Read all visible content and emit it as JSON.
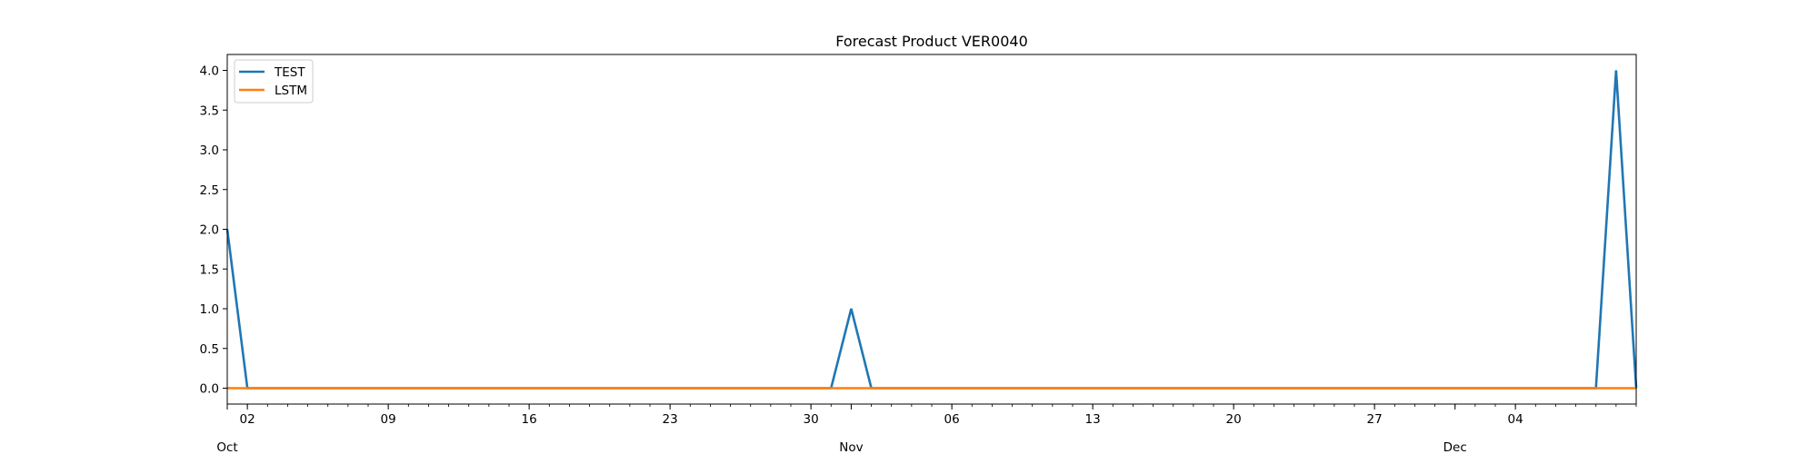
{
  "chart_data": {
    "type": "line",
    "title": "Forecast Product VER0040",
    "xlabel": "",
    "ylabel": "",
    "x_range": [
      "2022-10-01",
      "2022-12-10"
    ],
    "ylim": [
      -0.2,
      4.2
    ],
    "grid": false,
    "legend_position": "top-left",
    "y_ticks": [
      "0.0",
      "0.5",
      "1.0",
      "1.5",
      "2.0",
      "2.5",
      "3.0",
      "3.5",
      "4.0"
    ],
    "x_major_ticks": [
      {
        "date": "2022-10-02",
        "label": "02"
      },
      {
        "date": "2022-10-09",
        "label": "09"
      },
      {
        "date": "2022-10-16",
        "label": "16"
      },
      {
        "date": "2022-10-23",
        "label": "23"
      },
      {
        "date": "2022-10-30",
        "label": "30"
      },
      {
        "date": "2022-11-06",
        "label": "06"
      },
      {
        "date": "2022-11-13",
        "label": "13"
      },
      {
        "date": "2022-11-20",
        "label": "20"
      },
      {
        "date": "2022-11-27",
        "label": "27"
      },
      {
        "date": "2022-12-04",
        "label": "04"
      }
    ],
    "x_month_labels": [
      {
        "date": "2022-10-01",
        "label": "Oct"
      },
      {
        "date": "2022-11-01",
        "label": "Nov"
      },
      {
        "date": "2022-12-01",
        "label": "Dec"
      }
    ],
    "series": [
      {
        "name": "TEST",
        "color": "#1f77b4",
        "points": [
          [
            "2022-10-01",
            2
          ],
          [
            "2022-10-02",
            0
          ],
          [
            "2022-10-31",
            0
          ],
          [
            "2022-11-01",
            1
          ],
          [
            "2022-11-02",
            0
          ],
          [
            "2022-12-08",
            0
          ],
          [
            "2022-12-09",
            4
          ],
          [
            "2022-12-10",
            0
          ]
        ]
      },
      {
        "name": "LSTM",
        "color": "#ff7f0e",
        "points": [
          [
            "2022-10-01",
            0
          ],
          [
            "2022-12-10",
            0
          ]
        ]
      }
    ]
  }
}
